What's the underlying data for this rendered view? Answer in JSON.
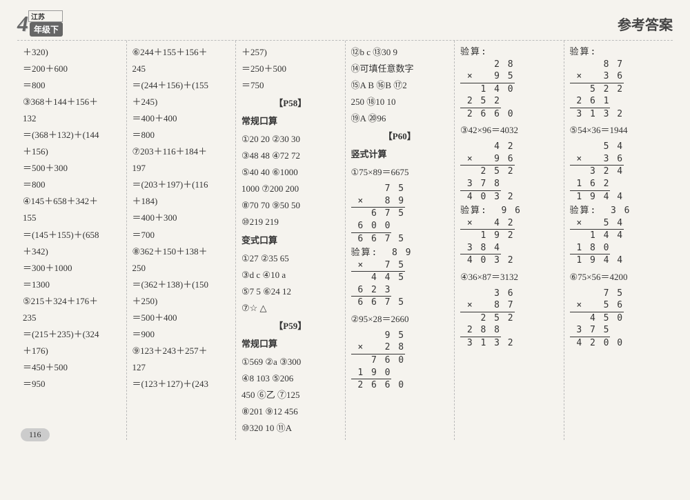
{
  "header": {
    "grade": "4",
    "region": "江苏",
    "level": "年级下",
    "title": "参考答案"
  },
  "pagenum": "116",
  "col1": [
    "＋320)",
    "＝200＋600",
    "＝800",
    "③368＋144＋156＋",
    "132",
    "＝(368＋132)＋(144",
    "＋156)",
    "＝500＋300",
    "＝800",
    "④145＋658＋342＋",
    "155",
    "＝(145＋155)＋(658",
    "＋342)",
    "＝300＋1000",
    "＝1300",
    "⑤215＋324＋176＋",
    "235",
    "＝(215＋235)＋(324",
    "＋176)",
    "＝450＋500",
    "＝950"
  ],
  "col2": [
    "⑥244＋155＋156＋",
    "245",
    "＝(244＋156)＋(155",
    "＋245)",
    "＝400＋400",
    "＝800",
    "⑦203＋116＋184＋",
    "197",
    "＝(203＋197)＋(116",
    "＋184)",
    "＝400＋300",
    "＝700",
    "⑧362＋150＋138＋",
    "250",
    "＝(362＋138)＋(150",
    "＋250)",
    "＝500＋400",
    "＝900",
    "⑨123＋243＋257＋",
    "127",
    "＝(123＋127)＋(243"
  ],
  "col3": {
    "top": [
      "＋257)",
      "＝250＋500",
      "＝750"
    ],
    "p58": "【P58】",
    "s1": "常规口算",
    "l1": [
      "①20  20  ②30  30",
      "③48  48  ④72  72",
      "⑤40  40  ⑥1000",
      "1000  ⑦200  200",
      "⑧70  70  ⑨50  50",
      "⑩219  219"
    ],
    "s2": "变式口算",
    "l2": [
      "①27  ②35  65",
      "③d   c   ④10   a",
      "⑤7  5  ⑥24  12",
      "⑦☆  △"
    ],
    "p59": "【P59】",
    "s3": "常规口算",
    "l3": [
      "①569  ②a  ③300",
      "④8  103  ⑤206",
      "450  ⑥乙  ⑦125",
      "⑧201  ⑨12  456",
      "⑩320  10  ⑪A"
    ]
  },
  "col4": {
    "top": [
      "⑫b  c  ⑬30  9",
      "⑭可填任意数字",
      "⑮A  B  ⑯B  ⑰2",
      "250  ⑱10  10",
      "⑲A  ⑳96"
    ],
    "p60": "【P60】",
    "s1": "竖式计算",
    "eq1": "①75×89＝6675",
    "eq2": "②95×28＝2660"
  },
  "col5": {
    "eq3": "③42×96＝4032",
    "eq4": "④36×87＝3132"
  },
  "col6": {
    "eq5": "⑤54×36＝1944",
    "eq6": "⑥75×56＝4200"
  },
  "v": {
    "c4a": {
      "l1": "     7 5",
      "l2": " ×   8 9",
      "l3": "   6 7 5",
      "l4": " 6 0 0",
      "l5": " 6 6 7 5"
    },
    "c4b": {
      "h": "验算:  8 9",
      "l2": " ×   7 5",
      "l3": "   4 4 5",
      "l4": " 6 2 3",
      "l5": " 6 6 7 5"
    },
    "c4c": {
      "l1": "     9 5",
      "l2": " ×   2 8",
      "l3": "   7 6 0",
      "l4": " 1 9 0",
      "l5": " 2 6 6 0"
    },
    "c5a": {
      "h": "验算:",
      "l1": "     2 8",
      "l2": " ×   9 5",
      "l3": "   1 4 0",
      "l4": " 2 5 2",
      "l5": " 2 6 6 0"
    },
    "c5b": {
      "l1": "     4 2",
      "l2": " ×   9 6",
      "l3": "   2 5 2",
      "l4": " 3 7 8",
      "l5": " 4 0 3 2"
    },
    "c5c": {
      "h": "验算:  9 6",
      "l2": " ×   4 2",
      "l3": "   1 9 2",
      "l4": " 3 8 4",
      "l5": " 4 0 3 2"
    },
    "c5d": {
      "l1": "     3 6",
      "l2": " ×   8 7",
      "l3": "   2 5 2",
      "l4": " 2 8 8",
      "l5": " 3 1 3 2"
    },
    "c6a": {
      "h": "验算:",
      "l1": "     8 7",
      "l2": " ×   3 6",
      "l3": "   5 2 2",
      "l4": " 2 6 1",
      "l5": " 3 1 3 2"
    },
    "c6b": {
      "l1": "     5 4",
      "l2": " ×   3 6",
      "l3": "   3 2 4",
      "l4": " 1 6 2",
      "l5": " 1 9 4 4"
    },
    "c6c": {
      "h": "验算:  3 6",
      "l2": " ×   5 4",
      "l3": "   1 4 4",
      "l4": " 1 8 0",
      "l5": " 1 9 4 4"
    },
    "c6d": {
      "l1": "     7 5",
      "l2": " ×   5 6",
      "l3": "   4 5 0",
      "l4": " 3 7 5",
      "l5": " 4 2 0 0"
    }
  }
}
